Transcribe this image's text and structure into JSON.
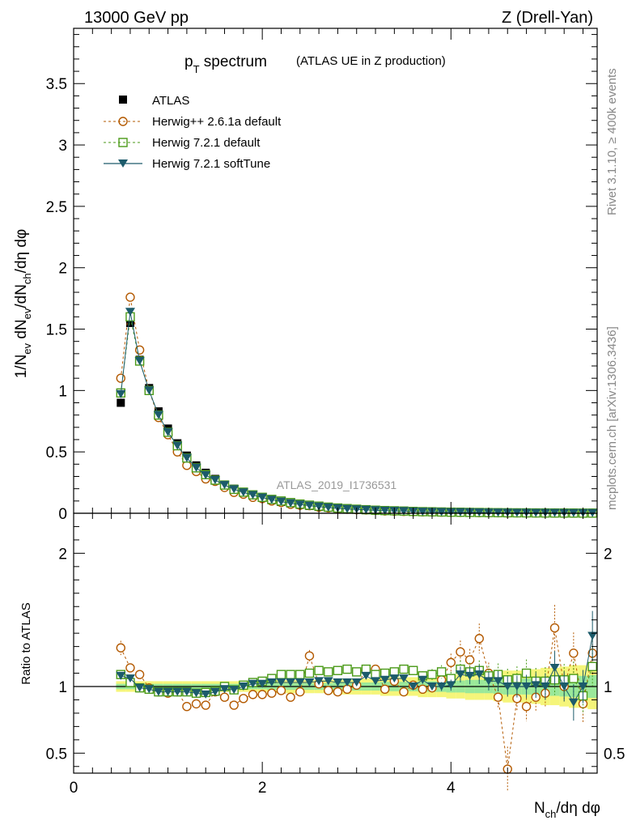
{
  "header": {
    "energy": "13000 GeV pp",
    "process": "Z (Drell-Yan)"
  },
  "title": {
    "main": "p",
    "sub": "T",
    "rest": " spectrum",
    "note": "(ATLAS UE in Z production)"
  },
  "side": {
    "rivet": "Rivet 3.1.10, ≥ 400k events",
    "mcplots": "mcplots.cern.ch [arXiv:1306.3436]"
  },
  "watermark": "ATLAS_2019_I1736531",
  "axes": {
    "ylabel_top": "1/N_ev dN_ev/dN_ch/dη dφ",
    "ylabel_bottom": "Ratio to ATLAS",
    "xlabel": "N_ch/dη dφ"
  },
  "legend": [
    {
      "name": "ATLAS",
      "color": "#000000",
      "marker": "square-filled",
      "style": "none"
    },
    {
      "name": "Herwig++ 2.6.1a default",
      "color": "#b35900",
      "marker": "circle-open",
      "style": "dashed"
    },
    {
      "name": "Herwig 7.2.1 default",
      "color": "#4a9a17",
      "marker": "square-open",
      "style": "dashed"
    },
    {
      "name": "Herwig 7.2.1 softTune",
      "color": "#1c5b6b",
      "marker": "triangle-down-filled",
      "style": "solid"
    }
  ],
  "chart_data": [
    {
      "type": "scatter",
      "panel": "main",
      "title": "pT spectrum (ATLAS UE in Z production)",
      "xlabel": "Nch/dη dφ",
      "ylabel": "1/Nev dNev/dNch/dη dφ",
      "xlim": [
        0,
        5.55
      ],
      "ylim": [
        0,
        3.95
      ],
      "yticks": [
        0,
        0.5,
        1,
        1.5,
        2,
        2.5,
        3,
        3.5
      ],
      "yticklabels": [
        "0",
        "0.5",
        "1",
        "1.5",
        "2",
        "2.5",
        "3",
        "3.5"
      ],
      "x": [
        0.5,
        0.6,
        0.7,
        0.8,
        0.9,
        1.0,
        1.1,
        1.2,
        1.3,
        1.4,
        1.5,
        1.6,
        1.7,
        1.8,
        1.9,
        2.0,
        2.1,
        2.2,
        2.3,
        2.4,
        2.5,
        2.6,
        2.7,
        2.8,
        2.9,
        3.0,
        3.1,
        3.2,
        3.3,
        3.4,
        3.5,
        3.6,
        3.7,
        3.8,
        3.9,
        4.0,
        4.1,
        4.2,
        4.3,
        4.4,
        4.5,
        4.6,
        4.7,
        4.8,
        4.9,
        5.0,
        5.1,
        5.2,
        5.3,
        5.4,
        5.5
      ],
      "series": [
        {
          "name": "ATLAS",
          "values": [
            0.9,
            1.55,
            1.25,
            1.02,
            0.83,
            0.69,
            0.57,
            0.47,
            0.39,
            0.33,
            0.28,
            0.23,
            0.2,
            0.17,
            0.145,
            0.125,
            0.107,
            0.092,
            0.08,
            0.069,
            0.06,
            0.052,
            0.045,
            0.039,
            0.034,
            0.03,
            0.026,
            0.023,
            0.02,
            0.018,
            0.016,
            0.014,
            0.012,
            0.011,
            0.0095,
            0.0085,
            0.0075,
            0.0066,
            0.0058,
            0.0051,
            0.0045,
            0.004,
            0.0035,
            0.0031,
            0.0027,
            0.0024,
            0.0021,
            0.0019,
            0.0017,
            0.0015,
            0.0013
          ]
        },
        {
          "name": "Herwig++ 2.6.1a default",
          "values": [
            1.1,
            1.76,
            1.33,
            1.0,
            0.78,
            0.64,
            0.5,
            0.39,
            0.34,
            0.28,
            0.26,
            0.21,
            0.17,
            0.155,
            0.13,
            0.12,
            0.1,
            0.088,
            0.073,
            0.065,
            0.062,
            0.05,
            0.044,
            0.037,
            0.033,
            0.029,
            0.027,
            0.023,
            0.019,
            0.017,
            0.015,
            0.013,
            0.012,
            0.011,
            0.0095,
            0.0088,
            0.0075,
            0.0065,
            0.0055,
            0.0045,
            0.004,
            0.0015,
            0.0032,
            0.0026,
            0.0024,
            0.0022,
            0.0025,
            0.0019,
            0.0018,
            0.0016,
            0.0012
          ]
        },
        {
          "name": "Herwig 7.2.1 default",
          "values": [
            0.98,
            1.6,
            1.24,
            1.0,
            0.8,
            0.66,
            0.55,
            0.45,
            0.37,
            0.315,
            0.27,
            0.23,
            0.195,
            0.172,
            0.15,
            0.13,
            0.113,
            0.1,
            0.087,
            0.075,
            0.066,
            0.058,
            0.05,
            0.043,
            0.038,
            0.033,
            0.029,
            0.025,
            0.022,
            0.02,
            0.018,
            0.015,
            0.013,
            0.012,
            0.0105,
            0.009,
            0.0085,
            0.0073,
            0.0065,
            0.0055,
            0.0049,
            0.0042,
            0.0037,
            0.0034,
            0.0028,
            0.0025,
            0.0022,
            0.002,
            0.0018,
            0.0014,
            0.0015
          ]
        },
        {
          "name": "Herwig 7.2.1 softTune",
          "values": [
            0.97,
            1.64,
            1.24,
            1.0,
            0.8,
            0.66,
            0.55,
            0.45,
            0.37,
            0.31,
            0.27,
            0.23,
            0.195,
            0.17,
            0.148,
            0.128,
            0.11,
            0.095,
            0.082,
            0.071,
            0.062,
            0.054,
            0.047,
            0.04,
            0.035,
            0.031,
            0.028,
            0.024,
            0.021,
            0.019,
            0.017,
            0.014,
            0.012,
            0.011,
            0.0095,
            0.0086,
            0.0082,
            0.0071,
            0.0063,
            0.0053,
            0.0047,
            0.004,
            0.0035,
            0.0031,
            0.0027,
            0.0024,
            0.0024,
            0.0019,
            0.0019,
            0.0013,
            0.0018
          ]
        }
      ]
    },
    {
      "type": "scatter",
      "panel": "ratio",
      "xlabel": "Nch/dη dφ",
      "ylabel": "Ratio to ATLAS",
      "xlim": [
        0,
        5.55
      ],
      "ylim": [
        0.35,
        2.3
      ],
      "xticks": [
        0,
        2,
        4
      ],
      "xticklabels": [
        "0",
        "2",
        "4"
      ],
      "yticks": [
        0.5,
        1,
        2
      ],
      "yticklabels": [
        "0.5",
        "1",
        "2"
      ],
      "x": [
        0.5,
        0.6,
        0.7,
        0.8,
        0.9,
        1.0,
        1.1,
        1.2,
        1.3,
        1.4,
        1.5,
        1.6,
        1.7,
        1.8,
        1.9,
        2.0,
        2.1,
        2.2,
        2.3,
        2.4,
        2.5,
        2.6,
        2.7,
        2.8,
        2.9,
        3.0,
        3.1,
        3.2,
        3.3,
        3.4,
        3.5,
        3.6,
        3.7,
        3.8,
        3.9,
        4.0,
        4.1,
        4.2,
        4.3,
        4.4,
        4.5,
        4.6,
        4.7,
        4.8,
        4.9,
        5.0,
        5.1,
        5.2,
        5.3,
        5.4,
        5.5
      ],
      "band_halfwidth": [
        0.02,
        0.02,
        0.02,
        0.02,
        0.02,
        0.02,
        0.02,
        0.02,
        0.02,
        0.02,
        0.02,
        0.02,
        0.02,
        0.02,
        0.02,
        0.02,
        0.025,
        0.025,
        0.025,
        0.025,
        0.025,
        0.025,
        0.025,
        0.03,
        0.03,
        0.03,
        0.03,
        0.03,
        0.035,
        0.035,
        0.035,
        0.035,
        0.04,
        0.04,
        0.04,
        0.045,
        0.045,
        0.05,
        0.05,
        0.05,
        0.055,
        0.06,
        0.06,
        0.06,
        0.065,
        0.07,
        0.07,
        0.075,
        0.08,
        0.08,
        0.085
      ],
      "series": [
        {
          "name": "Herwig++ 2.6.1a default",
          "values": [
            1.29,
            1.14,
            1.09,
            0.99,
            0.96,
            0.95,
            0.96,
            0.85,
            0.87,
            0.86,
            0.96,
            0.92,
            0.86,
            0.91,
            0.94,
            0.94,
            0.95,
            0.97,
            0.92,
            0.96,
            1.23,
            1.02,
            0.97,
            0.96,
            0.98,
            1.01,
            1.12,
            1.13,
            0.98,
            1.04,
            0.96,
            1.01,
            0.98,
            0.99,
            1.05,
            1.18,
            1.26,
            1.2,
            1.36,
            1.1,
            0.92,
            0.38,
            0.91,
            0.85,
            0.92,
            0.95,
            1.44,
            1.0,
            1.25,
            0.87,
            1.25
          ]
        },
        {
          "name": "Herwig 7.2.1 default",
          "values": [
            1.09,
            1.03,
            0.99,
            0.98,
            0.96,
            0.96,
            0.96,
            0.96,
            0.95,
            0.955,
            0.965,
            1.0,
            0.975,
            1.01,
            1.03,
            1.04,
            1.06,
            1.09,
            1.09,
            1.09,
            1.1,
            1.12,
            1.11,
            1.12,
            1.13,
            1.11,
            1.13,
            1.09,
            1.1,
            1.11,
            1.13,
            1.12,
            1.08,
            1.09,
            1.11,
            1.06,
            1.13,
            1.11,
            1.12,
            1.08,
            1.09,
            1.05,
            1.06,
            1.1,
            1.04,
            1.04,
            1.05,
            1.05,
            1.06,
            0.93,
            1.15
          ]
        },
        {
          "name": "Herwig 7.2.1 softTune",
          "values": [
            1.08,
            1.06,
            0.99,
            0.98,
            0.96,
            0.96,
            0.96,
            0.96,
            0.95,
            0.94,
            0.96,
            0.98,
            0.975,
            1.0,
            1.02,
            1.02,
            1.03,
            1.03,
            1.03,
            1.03,
            1.03,
            1.04,
            1.04,
            1.03,
            1.03,
            1.03,
            1.08,
            1.04,
            1.05,
            1.06,
            1.06,
            1.0,
            1.05,
            1.0,
            1.0,
            1.01,
            1.09,
            1.08,
            1.09,
            1.04,
            1.04,
            1.0,
            1.0,
            1.0,
            1.01,
            1.0,
            1.14,
            1.0,
            0.88,
            1.0,
            1.38
          ]
        }
      ],
      "reference_line": 1
    }
  ]
}
